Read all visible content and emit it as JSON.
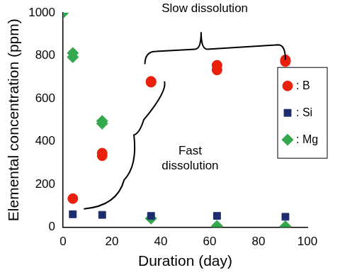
{
  "chart_data": {
    "type": "scatter",
    "x_label": "Duration (day)",
    "y_label": "Elemental concentration (ppm)",
    "series": [
      {
        "name": ": B",
        "color": "#e8200c",
        "marker": "circle",
        "x": [
          4,
          16,
          16,
          36,
          36,
          63,
          63,
          91,
          91
        ],
        "values": [
          133,
          345,
          333,
          680,
          676,
          755,
          733,
          780,
          772
        ]
      },
      {
        "name": ": Si",
        "color": "#1c2c6e",
        "marker": "square",
        "x": [
          4,
          16,
          36,
          63,
          91
        ],
        "values": [
          60,
          57,
          52,
          52,
          48
        ]
      },
      {
        "name": ": Mg",
        "color": "#33a84c",
        "marker": "diamond",
        "x": [
          0,
          4,
          4,
          16,
          16,
          36,
          63,
          91
        ],
        "values": [
          1000,
          812,
          793,
          495,
          483,
          40,
          5,
          3
        ]
      }
    ],
    "xlim": [
      0,
      100
    ],
    "xticks": [
      0,
      20,
      40,
      60,
      80,
      100
    ],
    "ylim": [
      0,
      1000
    ],
    "yticks": [
      0,
      200,
      400,
      600,
      800,
      1000
    ],
    "grid": false,
    "legend": "right",
    "annotations": [
      "Slow dissolution",
      "Fast dissolution"
    ]
  }
}
